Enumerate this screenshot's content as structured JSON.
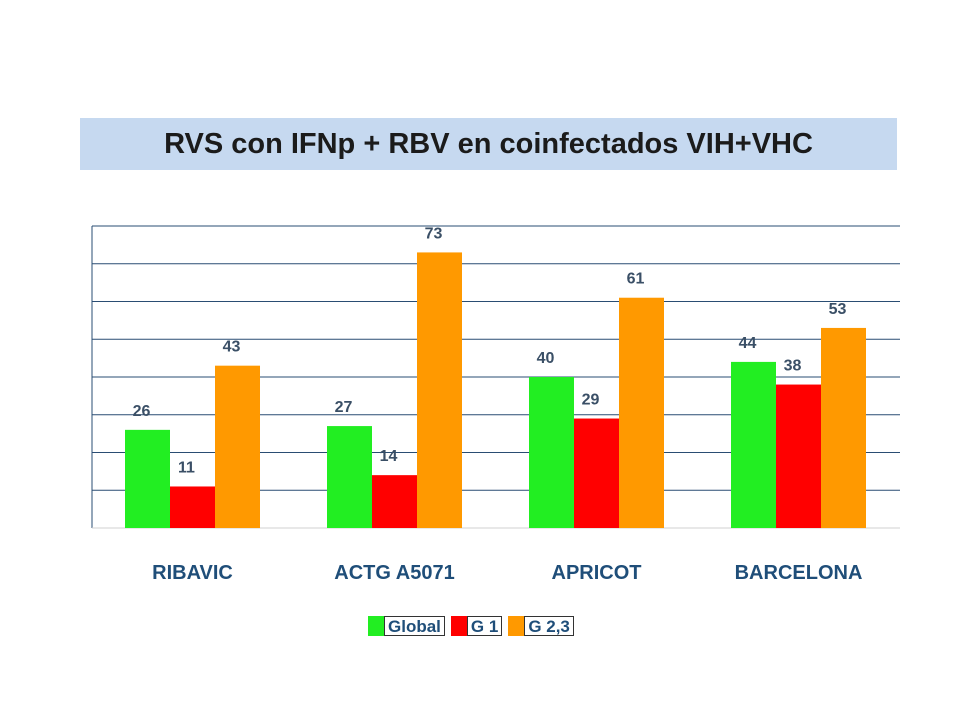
{
  "title": "RVS con IFNp + RBV en coinfectados VIH+VHC",
  "colors": {
    "title_band": "#c6d9f0",
    "global": "#22ee22",
    "g1": "#ff0000",
    "g23": "#ff9900",
    "gridline": "#2a4d73"
  },
  "chart_data": {
    "type": "bar",
    "title": "RVS con IFNp + RBV en coinfectados VIH+VHC",
    "categories": [
      "RIBAVIC",
      "ACTG A5071",
      "APRICOT",
      "BARCELONA"
    ],
    "series": [
      {
        "name": "Global",
        "values": [
          26,
          27,
          40,
          44
        ],
        "color": "#22ee22"
      },
      {
        "name": "G 1",
        "values": [
          11,
          14,
          29,
          38
        ],
        "color": "#ff0000"
      },
      {
        "name": "G 2,3",
        "values": [
          43,
          73,
          61,
          53
        ],
        "color": "#ff9900"
      }
    ],
    "ylim": [
      0,
      80
    ],
    "grid": true,
    "legend_position": "bottom"
  }
}
